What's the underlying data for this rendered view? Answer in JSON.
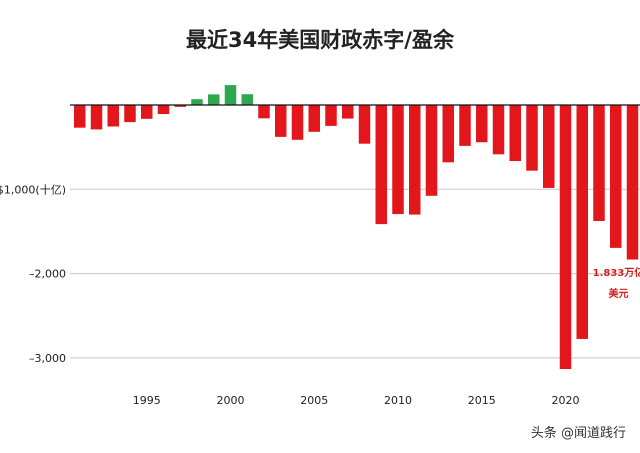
{
  "chart_data": {
    "type": "bar",
    "title": "最近34年美国财政赤字/盈余",
    "xlabel": "",
    "ylabel": "",
    "ylim": [
      -3150,
      150
    ],
    "y_ticks": [
      {
        "value": -1000,
        "label": "–$1,000(十亿)"
      },
      {
        "value": -2000,
        "label": "–2,000"
      },
      {
        "value": -3000,
        "label": "–3,000"
      }
    ],
    "x_ticks": [
      1995,
      2000,
      2005,
      2010,
      2015,
      2020
    ],
    "colors": {
      "deficit": "#e3171b",
      "surplus": "#2ea84f"
    },
    "series": [
      {
        "name": "财政赤字/盈余",
        "x": [
          1991,
          1992,
          1993,
          1994,
          1995,
          1996,
          1997,
          1998,
          1999,
          2000,
          2001,
          2002,
          2003,
          2004,
          2005,
          2006,
          2007,
          2008,
          2009,
          2010,
          2011,
          2012,
          2013,
          2014,
          2015,
          2016,
          2017,
          2018,
          2019,
          2020,
          2021,
          2022,
          2023,
          2024
        ],
        "values": [
          -269,
          -290,
          -255,
          -203,
          -164,
          -107,
          -22,
          69,
          126,
          236,
          128,
          -158,
          -378,
          -413,
          -318,
          -248,
          -161,
          -459,
          -1413,
          -1294,
          -1300,
          -1077,
          -680,
          -485,
          -442,
          -585,
          -665,
          -779,
          -984,
          -3132,
          -2775,
          -1376,
          -1695,
          -1833
        ]
      }
    ],
    "annotations": [
      {
        "x": 2024,
        "line1": "1.833万亿",
        "line2": "美元"
      }
    ]
  },
  "watermark": "头条 @闻道践行"
}
